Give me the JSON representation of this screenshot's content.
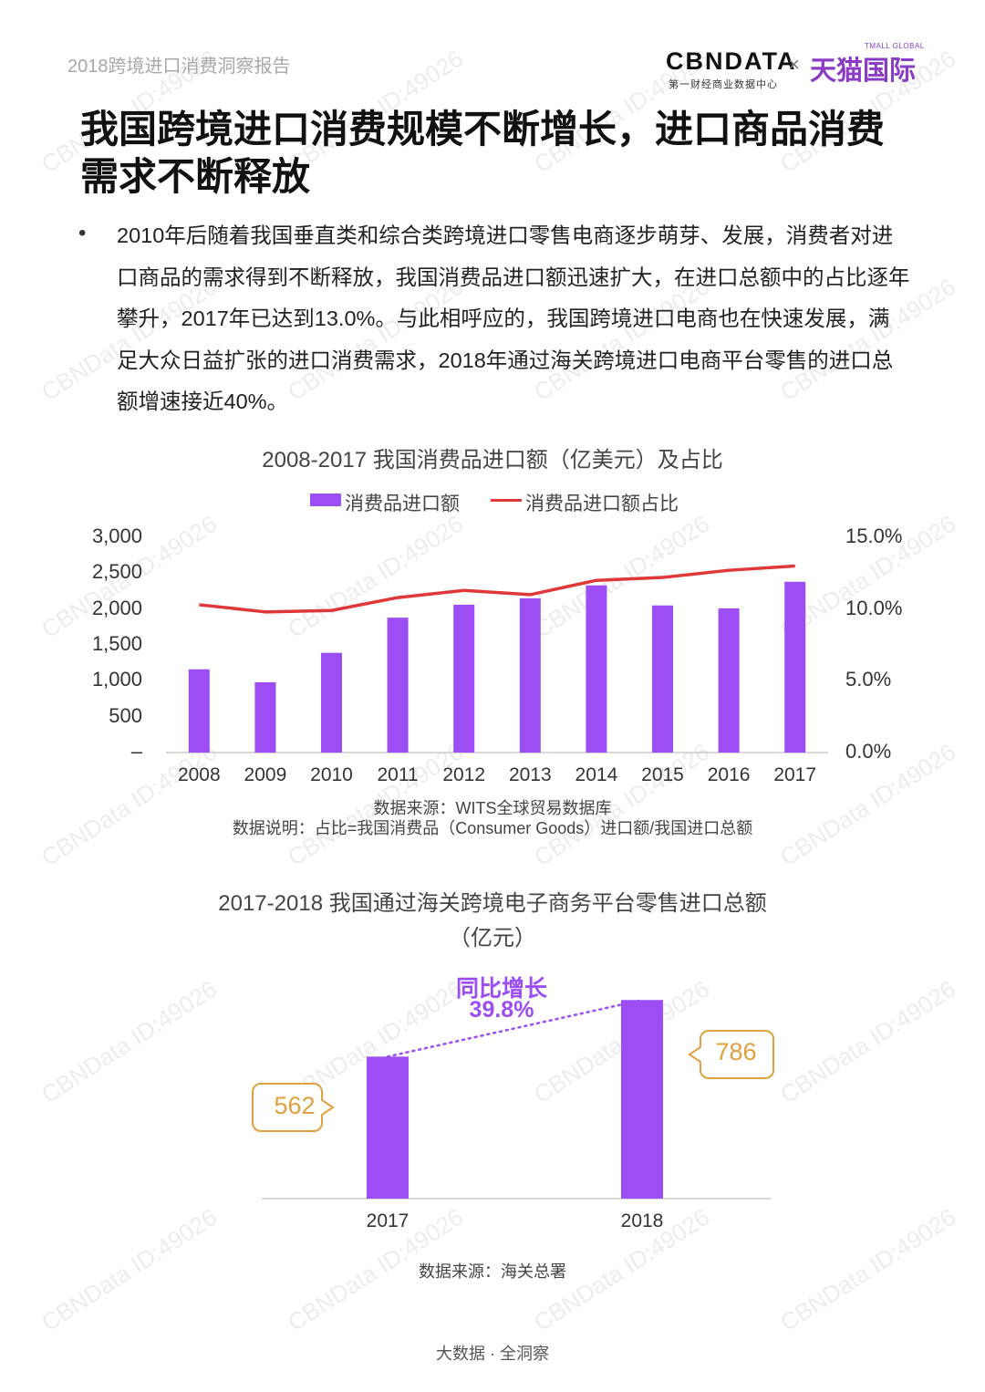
{
  "header": {
    "report_title": "2018跨境进口消费洞察报告",
    "logo_cbn": "CBNDATA",
    "logo_cbn_sub": "第一财经商业数据中心",
    "logo_x": "×",
    "logo_tmall": "天猫国际",
    "logo_tmall_small": "TMALL GLOBAL"
  },
  "title": "我国跨境进口消费规模不断增长，进口商品消费需求不断释放",
  "bullet": "•",
  "body": "2010年后随着我国垂直类和综合类跨境进口零售电商逐步萌芽、发展，消费者对进口商品的需求得到不断释放，我国消费品进口额迅速扩大，在进口总额中的占比逐年攀升，2017年已达到13.0%。与此相呼应的，我国跨境进口电商也在快速发展，满足大众日益扩张的进口消费需求，2018年通过海关跨境进口电商平台零售的进口总额增速接近40%。",
  "watermark_text": "CBNData ID:49026",
  "colors": {
    "bar": "#9c4df4",
    "line": "#e03838",
    "callout": "#e0a040",
    "axis": "#cccccc"
  },
  "chart_data": [
    {
      "type": "bar",
      "title": "2008-2017 我国消费品进口额（亿美元）及占比",
      "categories": [
        "2008",
        "2009",
        "2010",
        "2011",
        "2012",
        "2013",
        "2014",
        "2015",
        "2016",
        "2017"
      ],
      "series": [
        {
          "name": "消费品进口额",
          "type": "bar",
          "axis": "left",
          "values": [
            1160,
            980,
            1390,
            1880,
            2060,
            2150,
            2330,
            2050,
            2010,
            2380
          ]
        },
        {
          "name": "消费品进口额占比",
          "type": "line",
          "axis": "right",
          "values": [
            10.3,
            9.8,
            9.9,
            10.8,
            11.3,
            11.0,
            12.0,
            12.2,
            12.7,
            13.0
          ]
        }
      ],
      "ylim_left": [
        0,
        3000
      ],
      "ylim_right": [
        0,
        15
      ],
      "yticks_left": [
        "–",
        "500",
        "1,000",
        "1,500",
        "2,000",
        "2,500",
        "3,000"
      ],
      "yticks_right": [
        "0.0%",
        "5.0%",
        "10.0%",
        "15.0%"
      ],
      "legend": "top-center",
      "grid": false,
      "notes": [
        "数据来源：WITS全球贸易数据库",
        "数据说明：占比=我国消费品（Consumer Goods）进口额/我国进口总额"
      ]
    },
    {
      "type": "bar",
      "title": "2017-2018 我国通过海关跨境电子商务平台零售进口总额",
      "subtitle": "（亿元）",
      "categories": [
        "2017",
        "2018"
      ],
      "values": [
        562,
        786
      ],
      "data_labels": [
        "562",
        "786"
      ],
      "annotation": {
        "label": "同比增长",
        "value": "39.8%"
      },
      "notes": [
        "数据来源：海关总署"
      ]
    }
  ],
  "footer": "大数据 · 全洞察"
}
